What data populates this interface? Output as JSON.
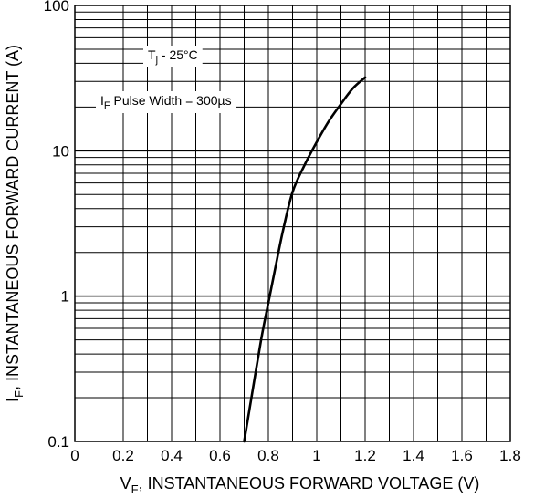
{
  "chart_data": {
    "type": "line",
    "x_axis": {
      "min": 0,
      "max": 1.8,
      "ticks": [
        0,
        0.2,
        0.4,
        0.6,
        0.8,
        1,
        1.2,
        1.4,
        1.6,
        1.8
      ],
      "tick_labels": [
        "0",
        "0.2",
        "0.4",
        "0.6",
        "0.8",
        "1",
        "1.2",
        "1.4",
        "1.6",
        "1.8"
      ],
      "label_main": "V",
      "label_sub": "F",
      "label_rest": ", INSTANTANEOUS FORWARD VOLTAGE (V)"
    },
    "y_axis": {
      "scale": "log",
      "min": 0.1,
      "max": 100,
      "ticks": [
        0.1,
        1,
        10,
        100
      ],
      "tick_labels": [
        "0.1",
        "1",
        "10",
        "100"
      ],
      "label_main": "I",
      "label_sub": "F",
      "label_rest": ", INSTANTANEOUS FORWARD CURRENT (A)"
    },
    "grid": true,
    "series": [
      {
        "x": [
          0.7,
          0.73,
          0.77,
          0.8,
          0.83,
          0.86,
          0.9,
          0.95,
          1.0,
          1.05,
          1.1,
          1.15,
          1.2
        ],
        "y": [
          0.1,
          0.2,
          0.5,
          0.9,
          1.6,
          2.8,
          5.2,
          8.0,
          11.5,
          16.0,
          21.0,
          27.0,
          32.0
        ]
      }
    ],
    "annotations": [
      {
        "main": "T",
        "sub": "j",
        "rest": " - 25°C"
      },
      {
        "main": "I",
        "sub": "F",
        "rest": " Pulse Width = 300µs"
      }
    ],
    "colors": {
      "line": "#000000",
      "grid": "#000000"
    }
  }
}
